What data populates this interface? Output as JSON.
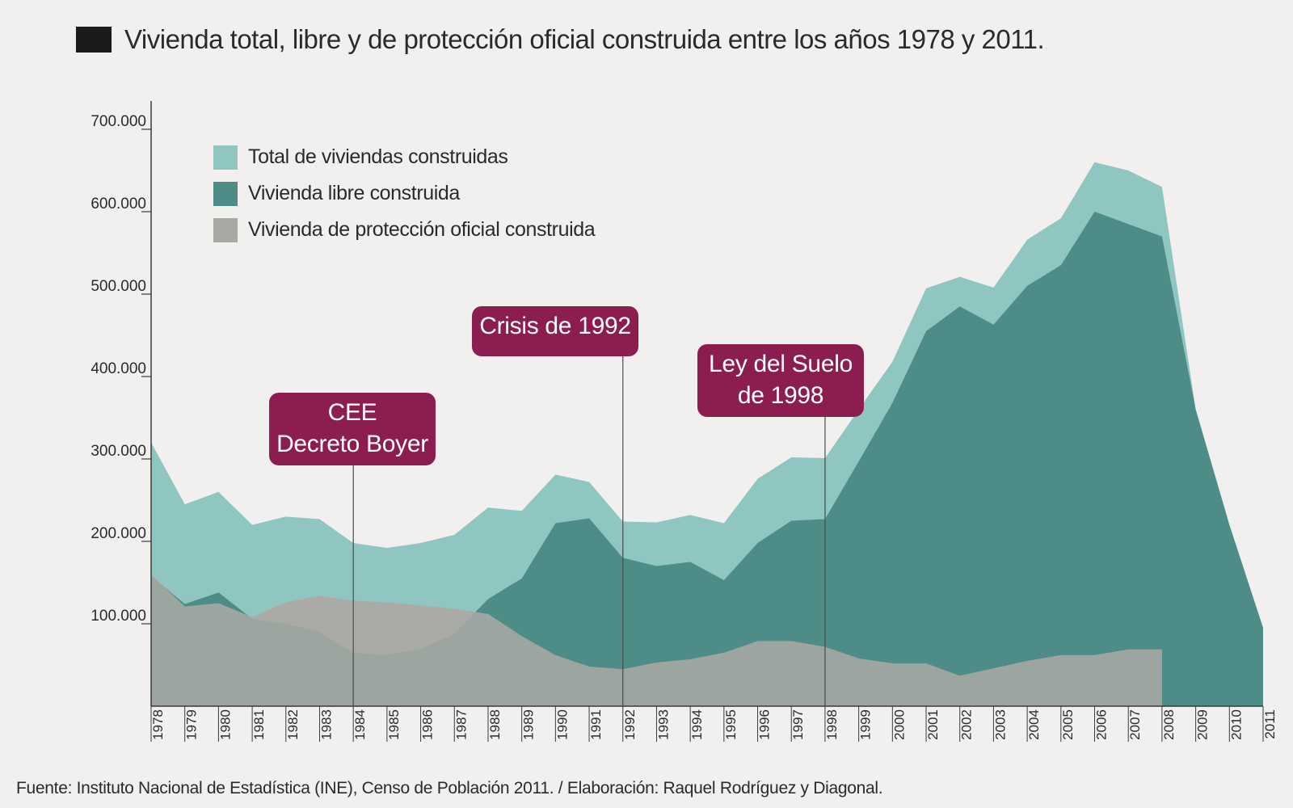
{
  "title": "Vivienda total, libre y de protección oficial construida entre los años 1978 y 2011.",
  "source": "Fuente: Instituto Nacional de Estadística (INE), Censo de Población 2011. / Elaboración: Raquel Rodríguez y Diagonal.",
  "legend": [
    {
      "label": "Total de viviendas construidas",
      "color": "#8fc6c2"
    },
    {
      "label": "Vivienda libre construida",
      "color": "#4e8c87"
    },
    {
      "label": "Vivienda de protección oficial construida",
      "color": "#a8a8a4"
    }
  ],
  "annotations": [
    {
      "lines": [
        "CEE",
        "Decreto Boyer"
      ],
      "year": 1984
    },
    {
      "lines": [
        "Crisis de 1992"
      ],
      "year": 1992
    },
    {
      "lines": [
        "Ley del Suelo",
        "de 1998"
      ],
      "year": 1998
    }
  ],
  "chart_data": {
    "type": "area",
    "title": "Vivienda total, libre y de protección oficial construida entre los años 1978 y 2011.",
    "xlabel": "",
    "ylabel": "",
    "ylim": [
      0,
      700000
    ],
    "yticks": [
      100000,
      200000,
      300000,
      400000,
      500000,
      600000,
      700000
    ],
    "ytick_labels": [
      "100.000",
      "200.000",
      "300.000",
      "400.000",
      "500.000",
      "600.000",
      "700.000"
    ],
    "categories": [
      "1978",
      "1979",
      "1980",
      "1981",
      "1982",
      "1983",
      "1984",
      "1985",
      "1986",
      "1987",
      "1988",
      "1989",
      "1990",
      "1991",
      "1992",
      "1993",
      "1994",
      "1995",
      "1996",
      "1997",
      "1998",
      "1999",
      "2000",
      "2001",
      "2002",
      "2003",
      "2004",
      "2005",
      "2006",
      "2007",
      "2008",
      "2009",
      "2010",
      "2011"
    ],
    "series": [
      {
        "name": "Total de viviendas construidas",
        "color": "#8fc6c2",
        "values": [
          320000,
          245000,
          260000,
          220000,
          230000,
          227000,
          198000,
          192000,
          198000,
          208000,
          241000,
          237000,
          281000,
          272000,
          224000,
          223000,
          232000,
          222000,
          276000,
          302000,
          301000,
          360000,
          418000,
          507000,
          521000,
          508000,
          566000,
          592000,
          660000,
          650000,
          630000,
          360000,
          220000,
          95000
        ]
      },
      {
        "name": "Vivienda libre construida",
        "color": "#4e8c87",
        "values": [
          158000,
          124000,
          138000,
          106000,
          100000,
          90000,
          65000,
          62000,
          70000,
          88000,
          130000,
          155000,
          222000,
          228000,
          180000,
          170000,
          175000,
          153000,
          198000,
          225000,
          227000,
          297000,
          368000,
          455000,
          485000,
          463000,
          510000,
          535000,
          600000,
          585000,
          570000,
          360000,
          220000,
          95000
        ]
      },
      {
        "name": "Vivienda de protección oficial construida",
        "color": "#a8a8a4",
        "values": [
          160000,
          121000,
          125000,
          108000,
          126000,
          134000,
          128000,
          126000,
          122000,
          118000,
          112000,
          85000,
          62000,
          48000,
          45000,
          53000,
          57000,
          65000,
          79000,
          79000,
          72000,
          58000,
          52000,
          52000,
          37000,
          46000,
          55000,
          62000,
          62000,
          69000,
          69000,
          0,
          0,
          0
        ]
      }
    ]
  }
}
